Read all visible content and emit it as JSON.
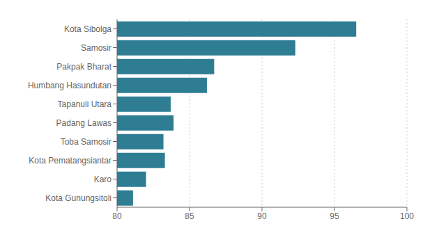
{
  "chart_data": {
    "type": "bar",
    "orientation": "horizontal",
    "categories": [
      "Kota Gunungsitoli",
      "Karo",
      "Kota Pematangsiantar",
      "Toba Samosir",
      "Padang Lawas",
      "Tapanuli Utara",
      "Humbang Hasundutan",
      "Pakpak Bharat",
      "Samosir",
      "Kota Sibolga"
    ],
    "values": [
      81.1,
      82.0,
      83.3,
      83.2,
      83.9,
      83.7,
      86.2,
      86.7,
      92.3,
      96.5
    ],
    "color": "#2e7d93",
    "xlim": [
      80,
      100
    ],
    "xticks": [
      80,
      85,
      90,
      95,
      100
    ],
    "grid": true
  }
}
